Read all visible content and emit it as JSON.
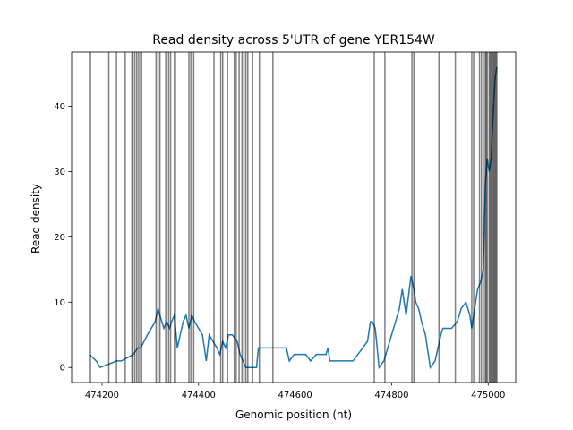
{
  "chart_data": {
    "type": "line",
    "title": "Read density across 5'UTR of gene YER154W",
    "xlabel": "Genomic position (nt)",
    "ylabel": "Read density",
    "xlim": [
      474137,
      475057
    ],
    "ylim": [
      -2.3,
      48.3
    ],
    "grid": false,
    "xticks": [
      474200,
      474400,
      474600,
      474800,
      475000
    ],
    "xtick_labels": [
      "474200",
      "474400",
      "474600",
      "474800",
      "475000"
    ],
    "yticks": [
      0,
      10,
      20,
      30,
      40
    ],
    "ytick_labels": [
      "0",
      "10",
      "20",
      "30",
      "40"
    ],
    "line_color": "#1f77b4",
    "vline_color": "#000000",
    "vline_opacity": 0.5,
    "series": [
      {
        "x": [
          474174,
          474188,
          474196,
          474230,
          474240,
          474265,
          474274,
          474280,
          474294,
          474310,
          474316,
          474320,
          474324,
          474328,
          474334,
          474340,
          474344,
          474350,
          474356,
          474362,
          474368,
          474374,
          474380,
          474386,
          474392,
          474400,
          474408,
          474416,
          474422,
          474430,
          474438,
          474444,
          474450,
          474456,
          474462,
          474470,
          474480,
          474486,
          474492,
          474498,
          474504,
          474510,
          474520,
          474524,
          474530,
          474546,
          474556,
          474566,
          474582,
          474588,
          474598,
          474606,
          474616,
          474622,
          474632,
          474644,
          474664,
          474668,
          474672,
          474682,
          474690,
          474720,
          474730,
          474750,
          474756,
          474760,
          474766,
          474774,
          474784,
          474792,
          474800,
          474808,
          474816,
          474822,
          474830,
          474840,
          474846,
          474850,
          474856,
          474862,
          474870,
          474880,
          474890,
          474896,
          474902,
          474906,
          474912,
          474924,
          474936,
          474944,
          474954,
          474962,
          474966,
          474972,
          474978,
          474984,
          474990,
          474994,
          474998,
          475002,
          475006,
          475010,
          475014,
          475018
        ],
        "y": [
          2,
          1,
          0,
          1,
          1,
          2,
          3,
          3,
          5,
          7,
          9,
          8,
          7,
          6,
          7,
          6,
          7,
          8,
          3,
          5,
          7,
          8,
          6,
          8,
          7,
          6,
          5,
          1,
          5,
          4,
          3,
          2,
          4,
          3,
          5,
          5,
          4,
          2,
          1,
          0,
          0,
          0,
          0,
          3,
          3,
          3,
          3,
          3,
          3,
          1,
          2,
          2,
          2,
          2,
          1,
          2,
          2,
          3,
          1,
          1,
          1,
          1,
          2,
          4,
          7,
          7,
          6,
          0,
          1,
          3,
          5,
          7,
          9,
          12,
          8,
          14,
          12,
          10,
          9,
          7,
          5,
          0,
          1,
          3,
          5,
          6,
          6,
          6,
          7,
          9,
          10,
          8,
          6,
          9,
          12,
          13,
          15,
          28,
          32,
          30,
          32,
          38,
          44,
          46
        ]
      }
    ],
    "vlines": [
      474174,
      474176,
      474214,
      474230,
      474248,
      474262,
      474264,
      474268,
      474272,
      474276,
      474280,
      474282,
      474312,
      474316,
      474320,
      474332,
      474338,
      474342,
      474350,
      474352,
      474380,
      474384,
      474390,
      474432,
      474446,
      474450,
      474460,
      474474,
      474478,
      474484,
      474490,
      474494,
      474498,
      474502,
      474512,
      474526,
      474554,
      474764,
      474786,
      474842,
      474846,
      474898,
      474932,
      474966,
      474970,
      474982,
      474986,
      474990,
      474994,
      474996,
      474998,
      475002,
      475004,
      475006,
      475008,
      475010,
      475012,
      475014,
      475016,
      475018
    ]
  }
}
